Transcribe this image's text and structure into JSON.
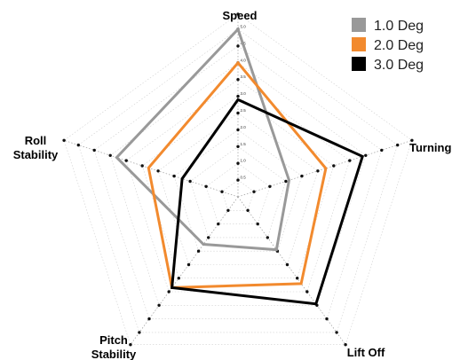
{
  "chart_data": {
    "type": "radar",
    "axes": [
      "Speed",
      "Turning",
      "Lift Off",
      "Pitch Stability",
      "Roll Stability"
    ],
    "rlim": [
      0,
      5
    ],
    "ticks": [
      "0.5",
      "1.0",
      "1.5",
      "2.0",
      "2.5",
      "3.0",
      "3.5",
      "4.0",
      "4.5",
      "5.0"
    ],
    "grid": true,
    "legend_position": "top-right",
    "series": [
      {
        "name": "1.0 Deg",
        "color": "#999999",
        "values": [
          5.0,
          1.6,
          1.95,
          1.75,
          3.8
        ]
      },
      {
        "name": "2.0 Deg",
        "color": "#F28A2E",
        "values": [
          4.0,
          2.75,
          3.2,
          3.35,
          2.8
        ]
      },
      {
        "name": "3.0 Deg",
        "color": "#000000",
        "values": [
          2.9,
          3.9,
          3.95,
          3.35,
          1.75
        ]
      }
    ]
  }
}
